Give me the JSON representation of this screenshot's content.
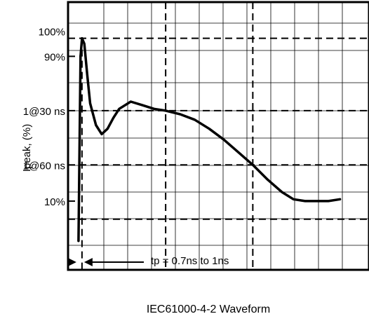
{
  "chart_data": {
    "type": "line",
    "title": "IEC61000-4-2 Waveform",
    "ylabel": "Ipeak, (%)",
    "xlabel": "",
    "x_unit": "ns",
    "y_unit": "%",
    "xlim": [
      -3.6,
      100
    ],
    "ylim": [
      -28,
      120
    ],
    "grid": true,
    "y_reference_labels": [
      {
        "label": "100%",
        "value": 100
      },
      {
        "label": "90%",
        "value": 90
      },
      {
        "label": "1@30 ns",
        "value": 60
      },
      {
        "label": "1@60 ns",
        "value": 30
      },
      {
        "label": "10%",
        "value": 10
      }
    ],
    "annotation": "tp = 0.7ns to 1ns",
    "series": [
      {
        "x": [
          0,
          0.7,
          1.2,
          2.0,
          3.0,
          4.0,
          6.0,
          8.0,
          10.0,
          12.0,
          14.0,
          18.0,
          22.0,
          26.0,
          30.0,
          35.0,
          40.0,
          45.0,
          50.0,
          55.0,
          60.0,
          65.0,
          70.0,
          74.0,
          78.0,
          82.0,
          86.0,
          90.0
        ],
        "y": [
          -12,
          90,
          100,
          97,
          80,
          64,
          52,
          47,
          50,
          56,
          61,
          65,
          63,
          61,
          60,
          58,
          55,
          50,
          44,
          37,
          30,
          22,
          15,
          11,
          10,
          10,
          10,
          11
        ]
      }
    ]
  }
}
